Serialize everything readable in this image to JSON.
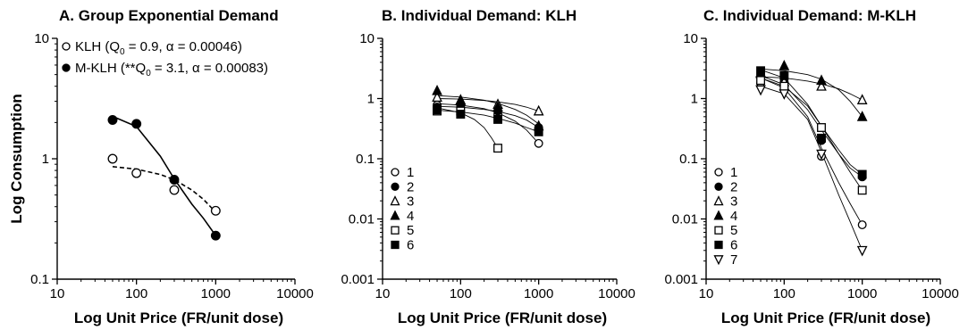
{
  "chart_data": [
    {
      "type": "scatter",
      "title": "A. Group Exponential Demand",
      "xlabel": "Log Unit Price (FR/unit dose)",
      "ylabel": "Log Consumption",
      "x_scale": "log",
      "y_scale": "log",
      "xlim": [
        10,
        10000
      ],
      "ylim": [
        0.1,
        10
      ],
      "xticks": [
        "10",
        "100",
        "1000",
        "10000"
      ],
      "yticks": [
        "0.1",
        "1",
        "10"
      ],
      "legend_position": "top-left",
      "series": [
        {
          "name": "KLH",
          "legend_text": "KLH (Q₀ = 0.9, α = 0.00046)",
          "marker": "open-circle",
          "x": [
            50,
            100,
            300,
            1000
          ],
          "y": [
            1.0,
            0.76,
            0.55,
            0.37
          ],
          "fit": {
            "style": "dashed",
            "x": [
              50,
              100,
              200,
              300,
              500,
              700,
              1000
            ],
            "y": [
              0.86,
              0.82,
              0.74,
              0.67,
              0.55,
              0.46,
              0.36
            ]
          }
        },
        {
          "name": "M-KLH",
          "legend_text": "M-KLH (**Q₀ = 3.1, α = 0.00083)",
          "marker": "filled-circle",
          "x": [
            50,
            100,
            300,
            1000
          ],
          "y": [
            2.1,
            1.95,
            0.67,
            0.23
          ],
          "fit": {
            "style": "solid",
            "x": [
              50,
              100,
              200,
              300,
              500,
              700,
              1000
            ],
            "y": [
              2.25,
              1.85,
              1.05,
              0.68,
              0.42,
              0.32,
              0.23
            ]
          }
        }
      ]
    },
    {
      "type": "scatter",
      "title": "B.  Individual Demand: KLH",
      "xlabel": "Log Unit Price (FR/unit dose)",
      "ylabel": "",
      "x_scale": "log",
      "y_scale": "log",
      "xlim": [
        10,
        10000
      ],
      "ylim": [
        0.001,
        10
      ],
      "xticks": [
        "10",
        "100",
        "1000",
        "10000"
      ],
      "yticks": [
        "0.001",
        "0.01",
        "0.1",
        "1",
        "10"
      ],
      "legend_position": "bottom-left",
      "series": [
        {
          "name": "1",
          "marker": "open-circle",
          "x": [
            50,
            100,
            300,
            1000
          ],
          "y": [
            0.78,
            0.75,
            0.55,
            0.18
          ],
          "fit": {
            "x": [
              50,
              100,
              200,
              300,
              500,
              700,
              1000
            ],
            "y": [
              0.82,
              0.78,
              0.68,
              0.58,
              0.42,
              0.3,
              0.18
            ]
          }
        },
        {
          "name": "2",
          "marker": "filled-circle",
          "x": [
            50,
            100,
            300,
            1000
          ],
          "y": [
            0.72,
            0.7,
            0.62,
            0.33
          ],
          "fit": {
            "x": [
              50,
              100,
              200,
              300,
              500,
              700,
              1000
            ],
            "y": [
              0.74,
              0.72,
              0.66,
              0.61,
              0.52,
              0.44,
              0.33
            ]
          }
        },
        {
          "name": "3",
          "marker": "open-triangle-up",
          "x": [
            50,
            100,
            300,
            1000
          ],
          "y": [
            1.05,
            0.92,
            0.8,
            0.62
          ],
          "fit": {
            "x": [
              50,
              100,
              200,
              300,
              500,
              700,
              1000
            ],
            "y": [
              1.0,
              0.98,
              0.93,
              0.88,
              0.8,
              0.72,
              0.62
            ]
          }
        },
        {
          "name": "4",
          "marker": "filled-triangle-up",
          "x": [
            50,
            100,
            300,
            1000
          ],
          "y": [
            1.35,
            0.95,
            0.72,
            0.35
          ],
          "fit": {
            "x": [
              50,
              100,
              200,
              300,
              500,
              700,
              1000
            ],
            "y": [
              1.12,
              1.06,
              0.94,
              0.83,
              0.66,
              0.53,
              0.38
            ]
          }
        },
        {
          "name": "5",
          "marker": "open-square",
          "x": [
            50,
            100,
            300
          ],
          "y": [
            0.62,
            0.62,
            0.15
          ],
          "fit": {
            "x": [
              50,
              100,
              150,
              200,
              250,
              300
            ],
            "y": [
              0.7,
              0.58,
              0.45,
              0.33,
              0.22,
              0.15
            ]
          }
        },
        {
          "name": "6",
          "marker": "filled-square",
          "x": [
            50,
            100,
            300,
            1000
          ],
          "y": [
            0.65,
            0.55,
            0.45,
            0.28
          ],
          "fit": {
            "x": [
              50,
              100,
              200,
              300,
              500,
              700,
              1000
            ],
            "y": [
              0.64,
              0.6,
              0.53,
              0.47,
              0.39,
              0.33,
              0.28
            ]
          }
        }
      ]
    },
    {
      "type": "scatter",
      "title": "C.  Individual Demand: M-KLH",
      "xlabel": "Log Unit Price (FR/unit dose)",
      "ylabel": "",
      "x_scale": "log",
      "y_scale": "log",
      "xlim": [
        10,
        10000
      ],
      "ylim": [
        0.001,
        10
      ],
      "xticks": [
        "10",
        "100",
        "1000",
        "10000"
      ],
      "yticks": [
        "0.001",
        "0.01",
        "0.1",
        "1",
        "10"
      ],
      "legend_position": "bottom-left",
      "series": [
        {
          "name": "1",
          "marker": "open-circle",
          "x": [
            50,
            100,
            300,
            1000
          ],
          "y": [
            1.8,
            1.5,
            0.11,
            0.008
          ],
          "fit": {
            "x": [
              50,
              100,
              200,
              300,
              500,
              700,
              1000
            ],
            "y": [
              2.2,
              1.5,
              0.5,
              0.15,
              0.04,
              0.018,
              0.008
            ]
          }
        },
        {
          "name": "2",
          "marker": "filled-circle",
          "x": [
            50,
            100,
            300,
            1000
          ],
          "y": [
            2.3,
            1.9,
            0.2,
            0.05
          ],
          "fit": {
            "x": [
              50,
              100,
              200,
              300,
              500,
              700,
              1000
            ],
            "y": [
              2.4,
              1.7,
              0.65,
              0.3,
              0.12,
              0.07,
              0.05
            ]
          }
        },
        {
          "name": "3",
          "marker": "open-triangle-up",
          "x": [
            50,
            100,
            300,
            1000
          ],
          "y": [
            2.6,
            1.9,
            1.6,
            0.95
          ],
          "fit": {
            "x": [
              50,
              100,
              200,
              300,
              500,
              700,
              1000
            ],
            "y": [
              2.3,
              2.2,
              1.95,
              1.75,
              1.45,
              1.2,
              0.95
            ]
          }
        },
        {
          "name": "4",
          "marker": "filled-triangle-up",
          "x": [
            50,
            100,
            300,
            1000
          ],
          "y": [
            2.7,
            3.5,
            2.0,
            0.5
          ],
          "fit": {
            "x": [
              50,
              100,
              200,
              300,
              500,
              700,
              1000
            ],
            "y": [
              3.1,
              2.9,
              2.5,
              2.1,
              1.4,
              0.9,
              0.5
            ]
          }
        },
        {
          "name": "5",
          "marker": "open-square",
          "x": [
            50,
            100,
            300,
            1000
          ],
          "y": [
            2.0,
            1.6,
            0.33,
            0.03
          ],
          "fit": {
            "x": [
              50,
              100,
              200,
              300,
              500,
              700,
              1000
            ],
            "y": [
              2.2,
              1.6,
              0.75,
              0.35,
              0.12,
              0.06,
              0.03
            ]
          }
        },
        {
          "name": "6",
          "marker": "filled-square",
          "x": [
            50,
            100,
            300,
            1000
          ],
          "y": [
            2.9,
            2.4,
            0.22,
            0.055
          ],
          "fit": {
            "x": [
              50,
              100,
              200,
              300,
              500,
              700,
              1000
            ],
            "y": [
              3.0,
              2.2,
              0.8,
              0.35,
              0.14,
              0.08,
              0.055
            ]
          }
        },
        {
          "name": "7",
          "marker": "open-triangle-down",
          "x": [
            50,
            100,
            300,
            1000
          ],
          "y": [
            1.4,
            1.2,
            0.12,
            0.003
          ],
          "fit": {
            "x": [
              50,
              100,
              200,
              300,
              500,
              700,
              1000
            ],
            "y": [
              1.6,
              1.2,
              0.45,
              0.13,
              0.025,
              0.009,
              0.003
            ]
          }
        }
      ]
    }
  ]
}
